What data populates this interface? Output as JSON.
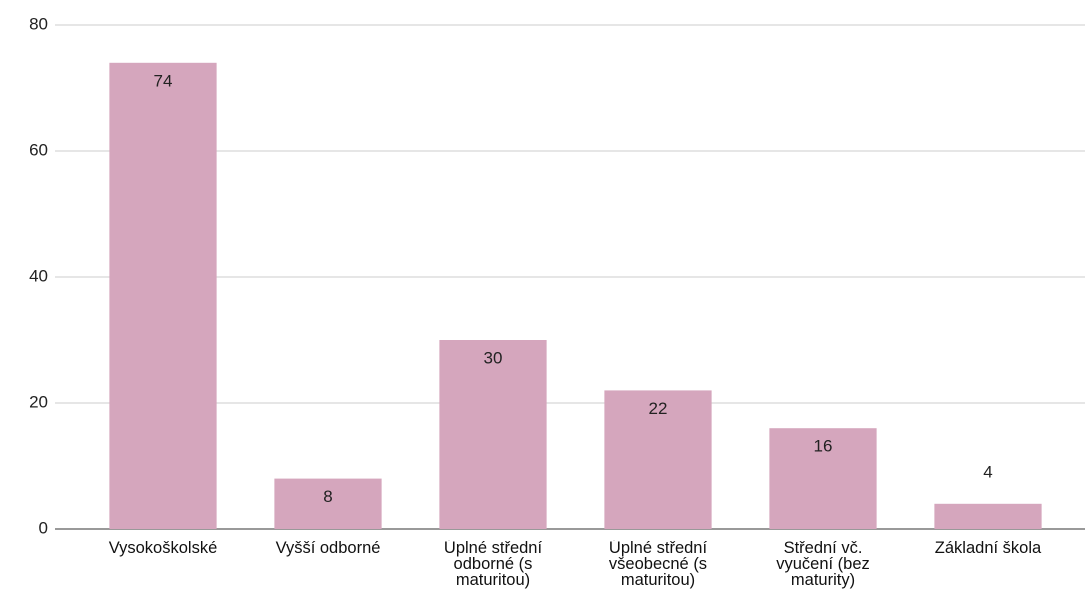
{
  "chart_data": {
    "type": "bar",
    "categories": [
      "Vysokoškolské",
      "Vyšší odborné",
      "Úplné střední odborné (s maturitou)",
      "Úplné střední všeobecné (s maturitou)",
      "Střední vč. vyučení (bez maturity)",
      "Základní škola"
    ],
    "values": [
      74,
      8,
      30,
      22,
      16,
      4
    ],
    "color": "#d5a6bd",
    "ylim": [
      0,
      80
    ],
    "yticks": [
      0,
      20,
      40,
      60,
      80
    ],
    "grid": true
  }
}
